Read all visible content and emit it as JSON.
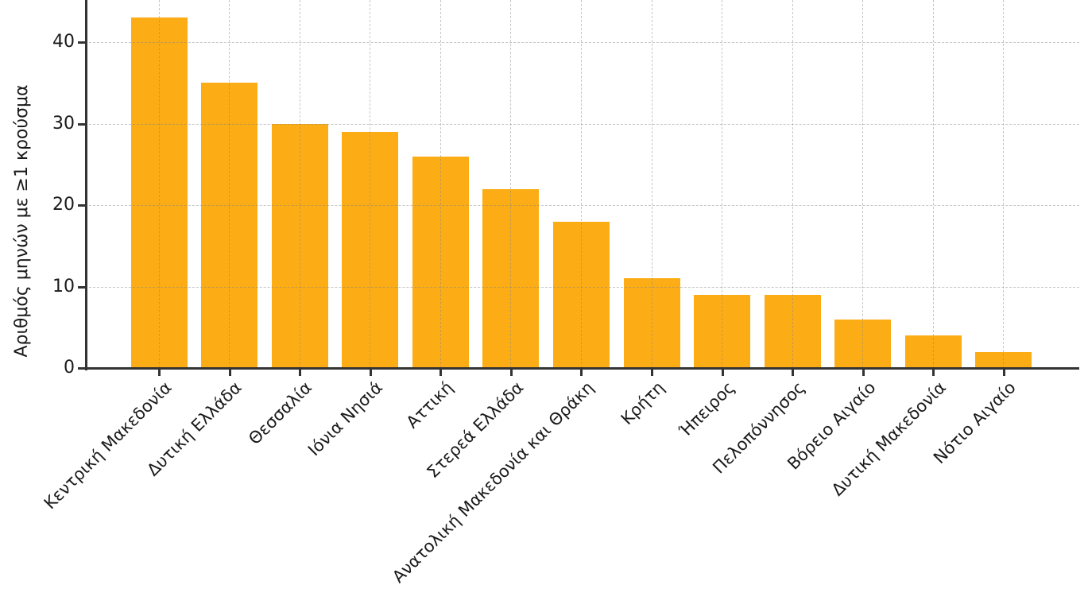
{
  "chart_data": {
    "type": "bar",
    "title": "",
    "xlabel": "",
    "ylabel": "Αριθμός μηνών με ≥1 κρούσμα",
    "categories": [
      "Κεντρική Μακεδονία",
      "Δυτική Ελλάδα",
      "Θεσσαλία",
      "Ιόνια Νησιά",
      "Αττική",
      "Στερεά Ελλάδα",
      "Ανατολική Μακεδονία και Θράκη",
      "Κρήτη",
      "Ήπειρος",
      "Πελοπόννησος",
      "Βόρειο Αιγαίο",
      "Δυτική Μακεδονία",
      "Νότιο Αιγαίο"
    ],
    "values": [
      43,
      35,
      30,
      29,
      26,
      22,
      18,
      11,
      9,
      9,
      6,
      4,
      2
    ],
    "yticks": [
      0,
      10,
      20,
      30,
      40
    ],
    "ylim": [
      0,
      45
    ],
    "grid": "dashed, horizontal and vertical, drawn over bars",
    "legend": "none",
    "bar_color": "#FCAD16",
    "axis_color": "#333333",
    "grid_color": "#C8C8C8",
    "text_color": "#1A1A1A",
    "background": "#FFFFFF"
  }
}
